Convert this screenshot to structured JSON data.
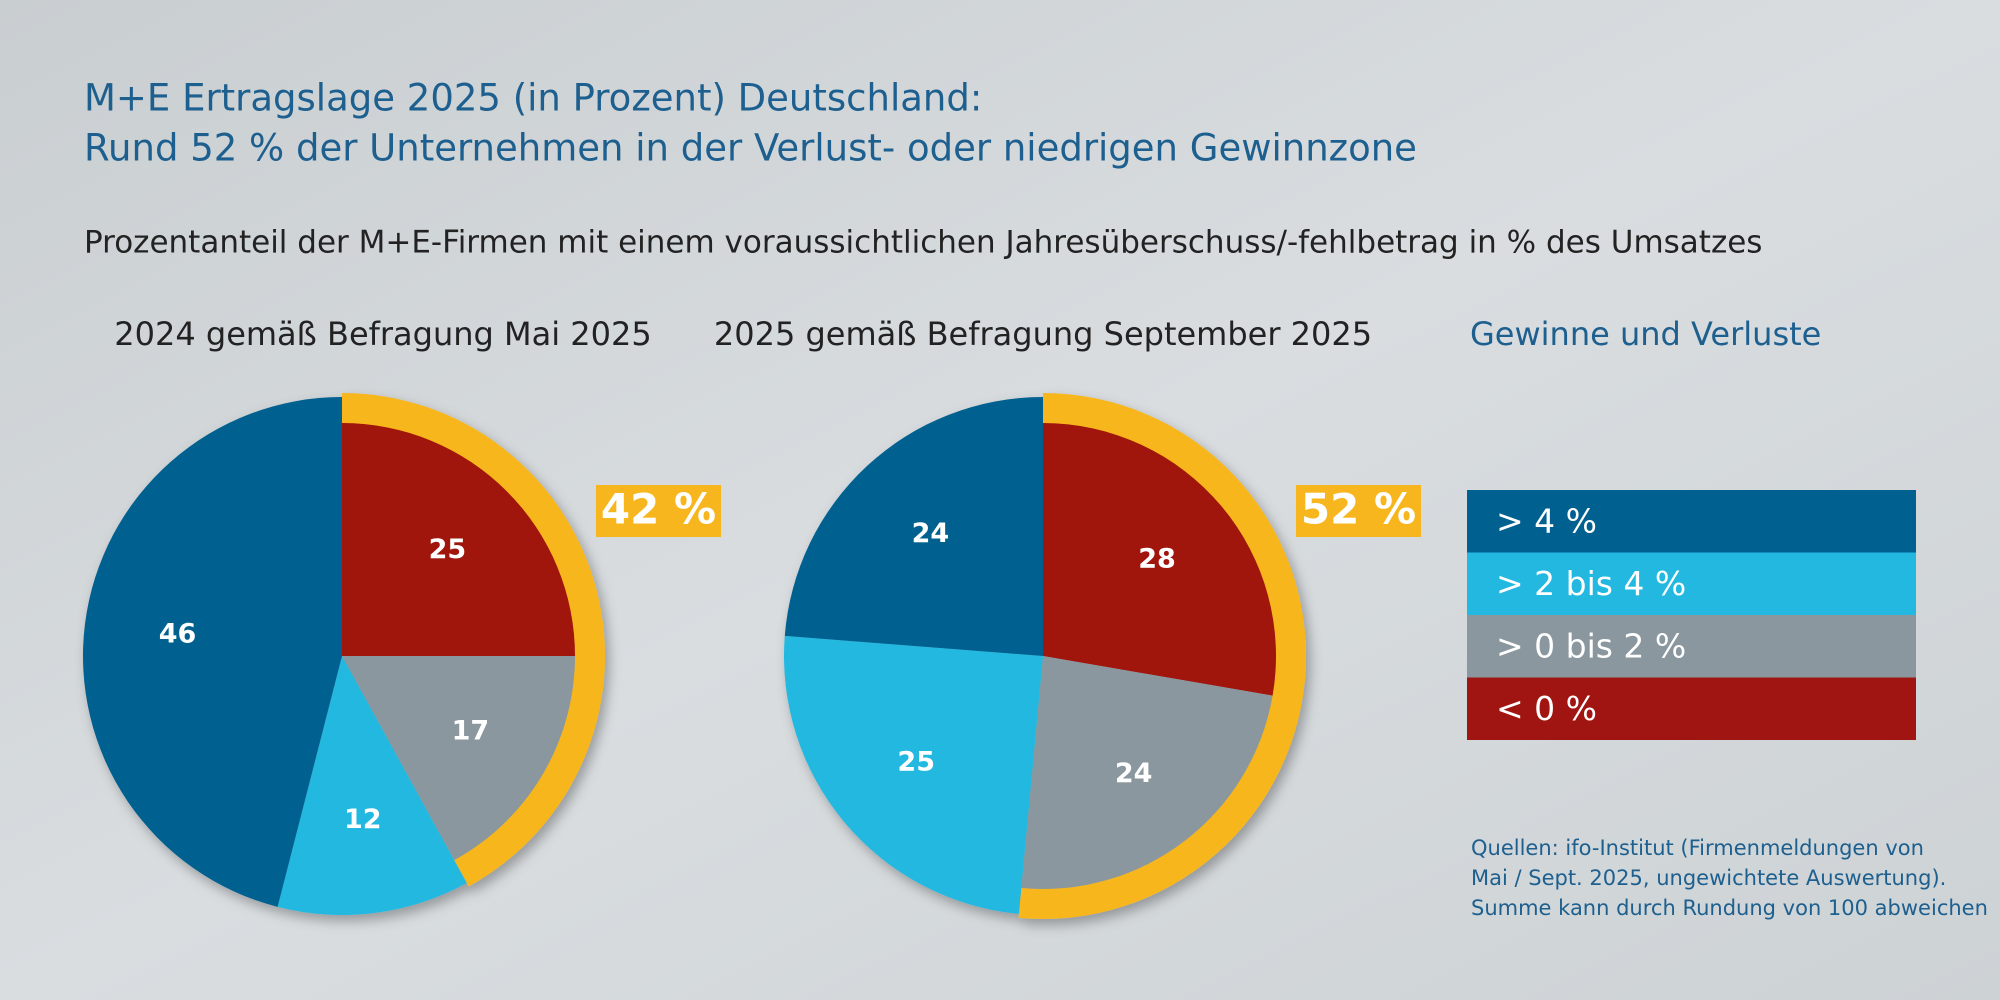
{
  "title": [
    "M+E Ertragslage 2025 (in Prozent) Deutschland:",
    "Rund 52 % der Unternehmen in der Verlust- oder niedrigen Gewinnzone"
  ],
  "subtitle": "Prozentanteil der M+E-Firmen mit einem voraussichtlichen Jahresüberschuss/-fehlbetrag in % des Umsatzes",
  "legend_title": "Gewinne und Verluste",
  "sources": [
    "Quellen: ifo-Institut (Firmenmeldungen von",
    "Mai / Sept. 2025, ungewichtete Auswertung).",
    "Summe kann durch Rundung von 100 abweichen"
  ],
  "chart_data": [
    {
      "type": "pie",
      "title": "2024 gemäß Befragung Mai 2025",
      "categories": [
        "> 4 %",
        "> 2 bis 4 %",
        "> 0 bis 2 %",
        "< 0 %"
      ],
      "colors": [
        "#00608f",
        "#22b8e0",
        "#8a979e",
        "#a01511"
      ],
      "values": [
        46,
        12,
        17,
        25
      ],
      "annotation": "42 %"
    },
    {
      "type": "pie",
      "title": "2025 gemäß Befragung September 2025",
      "categories": [
        "> 4 %",
        "> 2 bis 4 %",
        "> 0 bis 2 %",
        "< 0 %"
      ],
      "colors": [
        "#00608f",
        "#22b8e0",
        "#8a979e",
        "#a01511"
      ],
      "values": [
        24,
        25,
        24,
        28
      ],
      "annotation": "52 %"
    }
  ]
}
